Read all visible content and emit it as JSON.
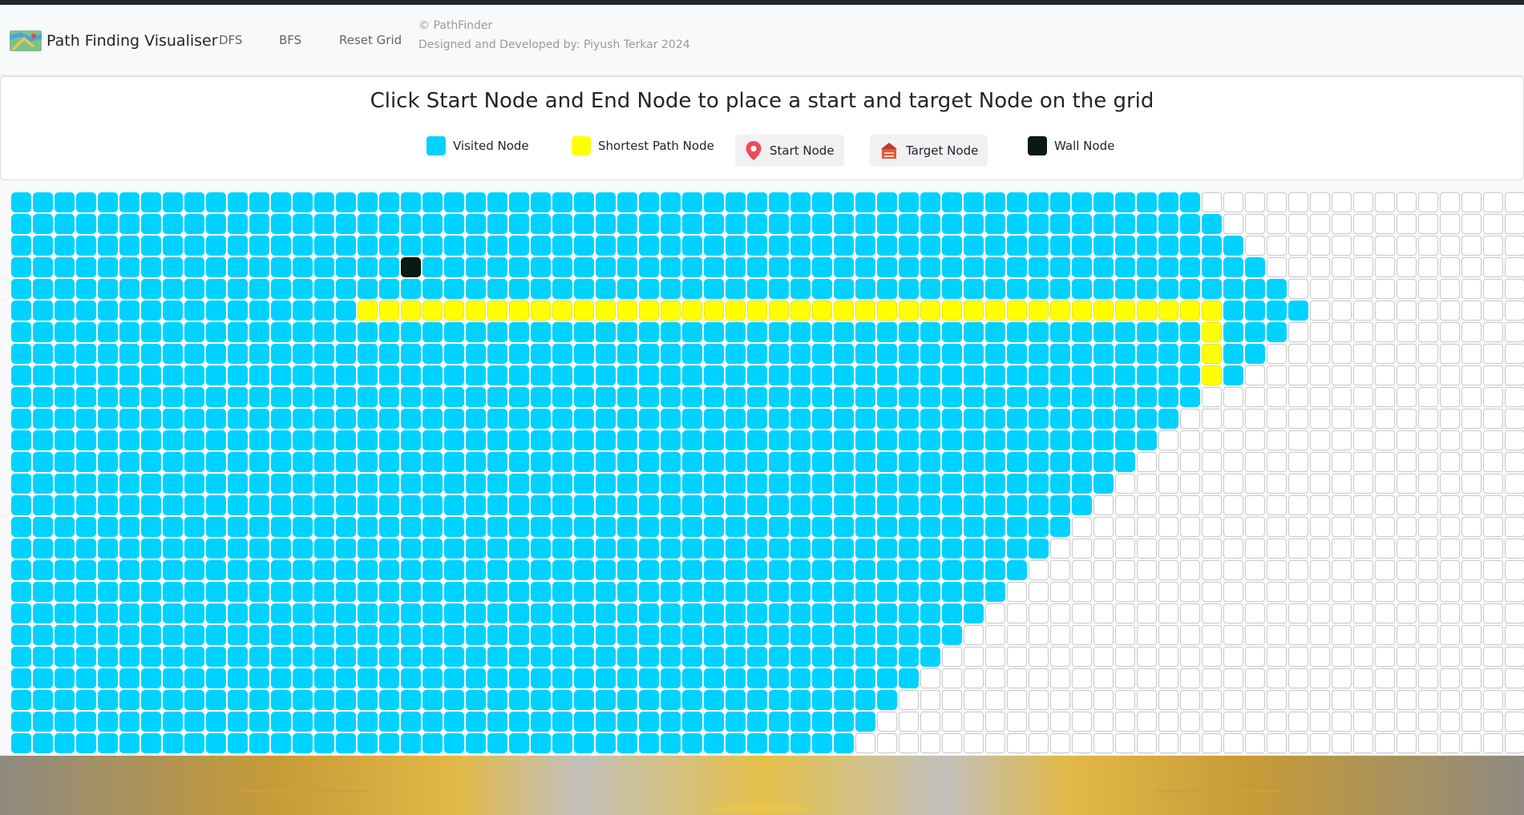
{
  "navbar": {
    "brand": "Path Finding Visualiser",
    "links": [
      "DFS",
      "BFS",
      "Reset Grid"
    ],
    "copyright": "© PathFinder",
    "designed_by": "Designed and Developed by: Piyush Terkar 2024"
  },
  "instructions": {
    "title": "Click Start Node and End Node to place a start and target Node on the grid"
  },
  "legend": [
    {
      "label": "Visited Node",
      "color": "#00d2ff",
      "icon": "visited-swatch"
    },
    {
      "label": "Shortest Path Node",
      "color": "#ffff00",
      "icon": "path-swatch"
    },
    {
      "label": "Start Node",
      "color": "#f04a5a",
      "icon": "map-pin-icon"
    },
    {
      "label": "Target Node",
      "color": "#e05a3a",
      "icon": "house-icon"
    },
    {
      "label": "Wall Node",
      "color": "#0a1a10",
      "icon": "wall-swatch"
    }
  ],
  "grid": {
    "columns": 70,
    "rows": 26,
    "colors": {
      "visited": "#00d2ff",
      "path": "#ffff00",
      "wall": "#0a1a10",
      "empty": "#ffffff"
    },
    "visited_count_per_row": [
      55,
      56,
      57,
      58,
      59,
      60,
      59,
      58,
      57,
      55,
      54,
      53,
      52,
      51,
      50,
      49,
      48,
      47,
      46,
      45,
      44,
      43,
      42,
      41,
      40,
      39
    ],
    "walls": [
      [
        3,
        18
      ]
    ],
    "path": [
      [
        5,
        16
      ],
      [
        5,
        17
      ],
      [
        5,
        18
      ],
      [
        5,
        19
      ],
      [
        5,
        20
      ],
      [
        5,
        21
      ],
      [
        5,
        22
      ],
      [
        5,
        23
      ],
      [
        5,
        24
      ],
      [
        5,
        25
      ],
      [
        5,
        26
      ],
      [
        5,
        27
      ],
      [
        5,
        28
      ],
      [
        5,
        29
      ],
      [
        5,
        30
      ],
      [
        5,
        31
      ],
      [
        5,
        32
      ],
      [
        5,
        33
      ],
      [
        5,
        34
      ],
      [
        5,
        35
      ],
      [
        5,
        36
      ],
      [
        5,
        37
      ],
      [
        5,
        38
      ],
      [
        5,
        39
      ],
      [
        5,
        40
      ],
      [
        5,
        41
      ],
      [
        5,
        42
      ],
      [
        5,
        43
      ],
      [
        5,
        44
      ],
      [
        5,
        45
      ],
      [
        5,
        46
      ],
      [
        5,
        47
      ],
      [
        5,
        48
      ],
      [
        5,
        49
      ],
      [
        5,
        50
      ],
      [
        5,
        51
      ],
      [
        5,
        52
      ],
      [
        5,
        53
      ],
      [
        5,
        54
      ],
      [
        5,
        55
      ],
      [
        6,
        55
      ],
      [
        7,
        55
      ],
      [
        8,
        55
      ]
    ]
  }
}
